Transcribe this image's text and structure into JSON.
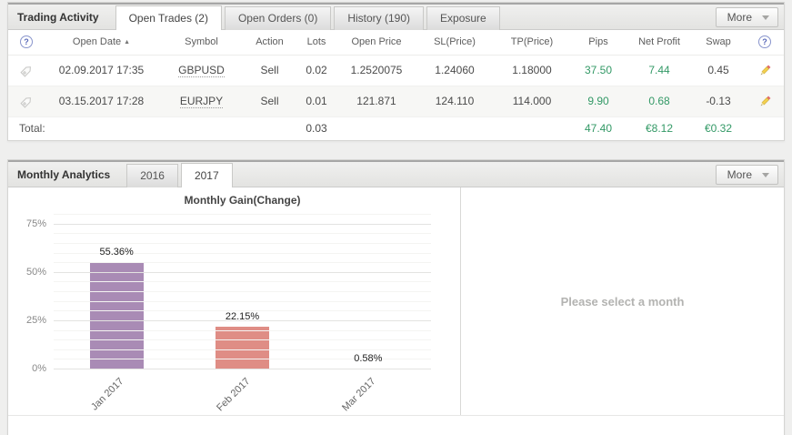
{
  "icons": {
    "help": "?",
    "sort_asc": "▲"
  },
  "colors": {
    "positive_green": "#339966",
    "help_icon_blue": "#5868b8",
    "bar_jan": "#a98bb5",
    "bar_feb": "#df8d85",
    "panel_header_gray": "#e8e8e7"
  },
  "trading_activity": {
    "title": "Trading Activity",
    "tabs": [
      "Open Trades (2)",
      "Open Orders (0)",
      "History (190)",
      "Exposure"
    ],
    "active_tab": "Open Trades (2)",
    "more_label": "More",
    "table": {
      "columns": [
        "Open Date",
        "Symbol",
        "Action",
        "Lots",
        "Open Price",
        "SL(Price)",
        "TP(Price)",
        "Pips",
        "Net Profit",
        "Swap"
      ],
      "sort": {
        "column": "Open Date",
        "direction": "asc"
      },
      "rows": [
        {
          "open_date": "02.09.2017 17:35",
          "symbol": "GBPUSD",
          "action": "Sell",
          "lots": "0.02",
          "open_price": "1.2520075",
          "sl_price": "1.24060",
          "tp_price": "1.18000",
          "pips": "37.50",
          "net_profit": "7.44",
          "swap": "0.45"
        },
        {
          "open_date": "03.15.2017 17:28",
          "symbol": "EURJPY",
          "action": "Sell",
          "lots": "0.01",
          "open_price": "121.871",
          "sl_price": "124.110",
          "tp_price": "114.000",
          "pips": "9.90",
          "net_profit": "0.68",
          "swap": "-0.13"
        }
      ],
      "total": {
        "label": "Total:",
        "lots": "0.03",
        "pips": "47.40",
        "net_profit": "€8.12",
        "swap": "€0.32"
      }
    }
  },
  "monthly_analytics": {
    "title": "Monthly Analytics",
    "tabs": [
      "2016",
      "2017"
    ],
    "active_tab": "2017",
    "more_label": "More",
    "placeholder": "Please select a month"
  },
  "chart_data": {
    "type": "bar",
    "title": "Monthly Gain(Change)",
    "categories": [
      "Jan 2017",
      "Feb 2017",
      "Mar 2017"
    ],
    "values": [
      55.36,
      22.15,
      0.58
    ],
    "value_labels": [
      "55.36%",
      "22.15%",
      "0.58%"
    ],
    "bar_colors": [
      "#a98bb5",
      "#df8d85",
      "#df8d85"
    ],
    "yticks": [
      "0%",
      "25%",
      "50%",
      "75%"
    ],
    "ytick_values": [
      0,
      25,
      50,
      75
    ],
    "ylim": [
      0,
      80
    ],
    "grid": true,
    "xlabel": "",
    "ylabel": ""
  }
}
